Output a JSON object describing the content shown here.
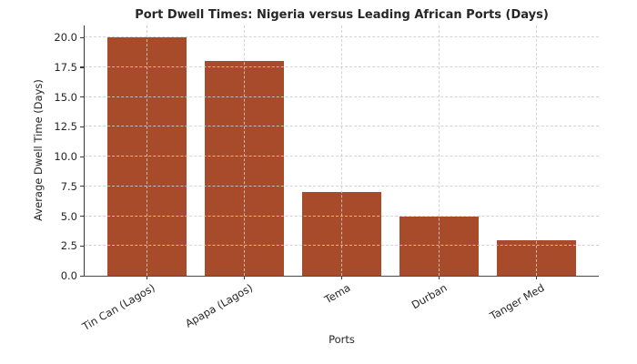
{
  "chart_data": {
    "type": "bar",
    "title": "Port Dwell Times: Nigeria versus Leading African Ports (Days)",
    "xlabel": "Ports",
    "ylabel": "Average Dwell Time (Days)",
    "categories": [
      "Tin Can (Lagos)",
      "Apapa (Lagos)",
      "Tema",
      "Durban",
      "Tanger Med"
    ],
    "values": [
      20,
      18,
      7,
      5,
      3
    ],
    "ylim": [
      0,
      21
    ],
    "yticks": [
      0.0,
      2.5,
      5.0,
      7.5,
      10.0,
      12.5,
      15.0,
      17.5,
      20.0
    ],
    "bar_color": "#A74B2B",
    "grid": true,
    "grid_style": "dashed",
    "legend": false
  }
}
